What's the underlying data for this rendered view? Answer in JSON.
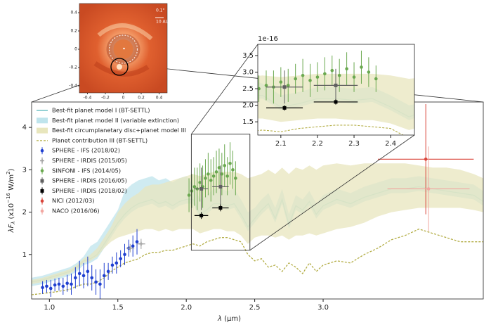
{
  "chart_data": [
    {
      "type": "spectrum",
      "xlabel_parts": [
        "λ",
        " (µm)"
      ],
      "ylabel_parts": [
        "λF",
        "λ",
        " (x10",
        "−16",
        " W/m",
        "2",
        ")"
      ],
      "xlim": [
        0.87,
        4.17
      ],
      "ylim": [
        -0.05,
        4.6
      ],
      "xticks": [
        {
          "value": 1.0,
          "label": "1.0"
        },
        1.5,
        {
          "value": 2.0,
          "label": "2.0"
        },
        2.5,
        {
          "value": 3.0,
          "label": "3.0"
        }
      ],
      "yticks": [
        1,
        2,
        3,
        4
      ],
      "legend": "upper left",
      "model_x": [
        0.87,
        0.95,
        1.0,
        1.05,
        1.1,
        1.15,
        1.2,
        1.25,
        1.3,
        1.35,
        1.4,
        1.45,
        1.5,
        1.55,
        1.6,
        1.65,
        1.7,
        1.75,
        1.8,
        1.85,
        1.9,
        1.95,
        2.0,
        2.05,
        2.1,
        2.15,
        2.2,
        2.25,
        2.3,
        2.35,
        2.4,
        2.45,
        2.5,
        2.55,
        2.6,
        2.65,
        2.7,
        2.75,
        2.8,
        2.85,
        2.9,
        2.95,
        3.0,
        3.1,
        3.2,
        3.3,
        3.4,
        3.5,
        3.6,
        3.7,
        3.8,
        3.9,
        4.0,
        4.1,
        4.17
      ],
      "series": [
        {
          "kind": "line",
          "name": "Best-fit planet model I (BT-SETTL)",
          "color": "#5ab8bc",
          "values": [
            0.35,
            0.4,
            0.45,
            0.5,
            0.55,
            0.6,
            0.7,
            0.85,
            0.9,
            1.0,
            1.25,
            1.5,
            1.75,
            1.95,
            2.1,
            2.2,
            2.25,
            2.3,
            2.2,
            2.25,
            2.15,
            2.25,
            2.3,
            2.3,
            1.95,
            2.05,
            2.2,
            2.2,
            2.15,
            2.2,
            1.95,
            1.65,
            1.85,
            2.05,
            2.2,
            1.85,
            2.3,
            1.7,
            2.15,
            2.05,
            2.25,
            1.95,
            2.15,
            2.3,
            2.2,
            2.35,
            2.45,
            2.55,
            2.55,
            2.6,
            2.55,
            2.5,
            2.45,
            2.4,
            2.25
          ]
        },
        {
          "kind": "band",
          "name": "Best-fit planet model II (variable extinction)",
          "color": "#bfe4ec",
          "lower": [
            0.25,
            0.3,
            0.35,
            0.4,
            0.45,
            0.5,
            0.6,
            0.75,
            0.8,
            0.9,
            1.15,
            1.4,
            1.65,
            1.85,
            2.0,
            2.1,
            2.15,
            2.2,
            2.1,
            2.15,
            2.05,
            2.15,
            2.2,
            2.2,
            1.85,
            1.95,
            2.1,
            2.1,
            2.05,
            2.1,
            1.85,
            1.55,
            1.75,
            1.95,
            2.1,
            1.75,
            2.2,
            1.6,
            2.05,
            1.95,
            2.15,
            1.85,
            2.05,
            2.2,
            2.1,
            2.25,
            2.35,
            2.45,
            2.45,
            2.5,
            2.45,
            2.4,
            2.35,
            2.3,
            2.15
          ],
          "upper": [
            0.45,
            0.5,
            0.55,
            0.6,
            0.65,
            0.7,
            0.8,
            0.95,
            1.2,
            1.3,
            1.55,
            1.8,
            2.05,
            2.5,
            2.65,
            2.75,
            2.8,
            2.85,
            2.75,
            2.8,
            2.7,
            2.8,
            2.85,
            2.65,
            2.3,
            2.4,
            2.55,
            2.55,
            2.5,
            2.55,
            2.3,
            2.0,
            2.1,
            2.3,
            2.45,
            2.1,
            2.55,
            1.95,
            2.4,
            2.3,
            2.5,
            2.2,
            2.4,
            2.55,
            2.45,
            2.6,
            2.7,
            2.8,
            2.8,
            2.85,
            2.8,
            2.75,
            2.7,
            2.65,
            2.5
          ]
        },
        {
          "kind": "band",
          "name": "Best-fit circumplanetary disc+planet model III",
          "color": "#e8e6bd",
          "lower": [
            0.3,
            0.35,
            0.4,
            0.45,
            0.5,
            0.55,
            0.65,
            0.8,
            0.85,
            0.95,
            1.15,
            1.3,
            1.4,
            1.45,
            1.5,
            1.55,
            1.6,
            1.6,
            1.55,
            1.6,
            1.55,
            1.6,
            1.6,
            1.6,
            1.5,
            1.55,
            1.6,
            1.6,
            1.55,
            1.55,
            1.45,
            1.25,
            1.4,
            1.45,
            1.45,
            1.4,
            1.45,
            1.35,
            1.45,
            1.45,
            1.5,
            1.45,
            1.5,
            1.6,
            1.65,
            1.75,
            1.9,
            2.0,
            2.05,
            2.1,
            2.1,
            2.1,
            2.1,
            2.05,
            2.0
          ],
          "upper": [
            0.4,
            0.45,
            0.5,
            0.55,
            0.6,
            0.65,
            0.75,
            0.9,
            1.0,
            1.15,
            1.4,
            1.65,
            2.0,
            2.2,
            2.35,
            2.45,
            2.6,
            2.65,
            2.65,
            2.7,
            2.75,
            2.8,
            2.85,
            2.9,
            2.85,
            2.9,
            2.95,
            2.95,
            2.95,
            2.95,
            2.9,
            2.8,
            2.85,
            2.9,
            3.0,
            2.9,
            3.05,
            2.9,
            3.05,
            3.0,
            3.1,
            3.0,
            3.1,
            3.15,
            3.1,
            3.15,
            3.15,
            3.15,
            3.15,
            3.1,
            3.05,
            3.05,
            3.0,
            2.9,
            2.8
          ]
        },
        {
          "kind": "dashed",
          "name": "Planet contribution III (BT-SETTL)",
          "color": "#b3ad45",
          "values": [
            0.05,
            0.08,
            0.1,
            0.12,
            0.15,
            0.18,
            0.25,
            0.3,
            0.3,
            0.35,
            0.45,
            0.6,
            0.7,
            0.8,
            0.85,
            0.9,
            1.0,
            1.05,
            1.05,
            1.1,
            1.1,
            1.15,
            1.2,
            1.25,
            1.2,
            1.3,
            1.35,
            1.4,
            1.4,
            1.35,
            1.3,
            1.0,
            0.85,
            0.9,
            0.7,
            0.75,
            0.6,
            0.8,
            0.7,
            0.55,
            0.8,
            0.6,
            0.75,
            0.85,
            0.8,
            1.0,
            1.15,
            1.35,
            1.45,
            1.6,
            1.5,
            1.4,
            1.3,
            1.3,
            1.3
          ]
        },
        {
          "kind": "errorbar",
          "name": "SPHERE - IFS (2018/02)",
          "color": "#1f3fd0",
          "marker": "circle",
          "x": [
            0.95,
            0.98,
            1.01,
            1.04,
            1.07,
            1.1,
            1.13,
            1.16,
            1.19,
            1.22,
            1.25,
            1.28,
            1.31,
            1.34,
            1.37,
            1.4,
            1.43,
            1.46,
            1.49,
            1.52,
            1.55,
            1.58,
            1.61,
            1.64
          ],
          "values": [
            0.22,
            0.25,
            0.2,
            0.28,
            0.3,
            0.25,
            0.32,
            0.3,
            0.45,
            0.55,
            0.5,
            0.6,
            0.45,
            0.35,
            0.3,
            0.5,
            0.6,
            0.75,
            0.8,
            0.9,
            1.0,
            1.15,
            1.2,
            1.3
          ],
          "yerr": [
            0.15,
            0.15,
            0.2,
            0.15,
            0.15,
            0.2,
            0.2,
            0.25,
            0.25,
            0.3,
            0.3,
            0.35,
            0.3,
            0.3,
            0.35,
            0.3,
            0.2,
            0.2,
            0.25,
            0.2,
            0.25,
            0.2,
            0.25,
            0.3
          ]
        },
        {
          "kind": "errorbar",
          "name": "SPHERE - IRDIS (2015/05)",
          "color": "#a0a0a0",
          "marker": "plus",
          "x": [
            1.59,
            1.67
          ],
          "values": [
            1.15,
            1.25
          ],
          "yerr": [
            0.1,
            0.12
          ],
          "xerr": [
            0.03,
            0.03
          ]
        },
        {
          "kind": "errorbar",
          "name": "SINFONI - IFS (2014/05)",
          "color": "#6aa84f",
          "marker": "circle",
          "x": [
            2.02,
            2.04,
            2.06,
            2.08,
            2.1,
            2.12,
            2.14,
            2.16,
            2.18,
            2.2,
            2.22,
            2.24,
            2.26,
            2.28,
            2.3,
            2.32,
            2.34,
            2.36
          ],
          "values": [
            2.4,
            2.5,
            2.6,
            2.55,
            2.7,
            2.6,
            2.8,
            2.9,
            2.75,
            2.85,
            2.95,
            3.05,
            2.9,
            3.1,
            2.85,
            3.15,
            3.0,
            2.8
          ],
          "yerr": [
            0.4,
            0.4,
            0.45,
            0.5,
            0.45,
            0.5,
            0.45,
            0.5,
            0.5,
            0.45,
            0.5,
            0.45,
            0.5,
            0.5,
            0.45,
            0.5,
            0.45,
            0.4
          ]
        },
        {
          "kind": "errorbar",
          "name": "SPHERE - IRDIS (2016/05)",
          "color": "#606060",
          "marker": "square",
          "x": [
            2.11,
            2.25
          ],
          "values": [
            2.55,
            2.6
          ],
          "yerr": [
            0.5,
            0.5
          ],
          "xerr": [
            0.05,
            0.06
          ]
        },
        {
          "kind": "errorbar",
          "name": "SPHERE - IRDIS (2018/02)",
          "color": "#000000",
          "marker": "square",
          "x": [
            2.11,
            2.25
          ],
          "values": [
            1.92,
            2.1
          ],
          "yerr": [
            0.08,
            0.08
          ],
          "xerr": [
            0.05,
            0.06
          ]
        },
        {
          "kind": "errorbar",
          "name": "NICI (2012/03)",
          "color": "#d9443a",
          "marker": "circle",
          "x": [
            3.75
          ],
          "values": [
            3.25
          ],
          "yerr": [
            1.3
          ],
          "xerr": [
            0.35
          ]
        },
        {
          "kind": "errorbar",
          "name": "NACO (2016/06)",
          "color": "#f2a6a0",
          "marker": "circle",
          "x": [
            3.77
          ],
          "values": [
            2.55
          ],
          "yerr": [
            1.0
          ],
          "xerr": [
            0.3
          ]
        }
      ]
    },
    {
      "type": "inset",
      "offset_text": "1e-16",
      "xlim": [
        2.037,
        2.465
      ],
      "ylim": [
        1.1,
        3.84
      ],
      "xticks": [
        2.1,
        2.2,
        2.3,
        2.4
      ],
      "yticks": [
        1.5,
        {
          "value": 2.0,
          "label": "2.0"
        },
        2.5,
        {
          "value": 3.0,
          "label": "3.0"
        },
        3.5
      ]
    },
    {
      "type": "image",
      "xlim": [
        -0.49,
        0.49
      ],
      "ylim": [
        -0.477,
        0.5
      ],
      "xticks": [
        -0.4,
        -0.2,
        0,
        0.2,
        0.4
      ],
      "yticks": [
        -0.4,
        -0.2,
        0,
        0.2,
        0.4
      ],
      "scale_labels": [
        "0.1\"",
        "10 AU"
      ]
    }
  ]
}
